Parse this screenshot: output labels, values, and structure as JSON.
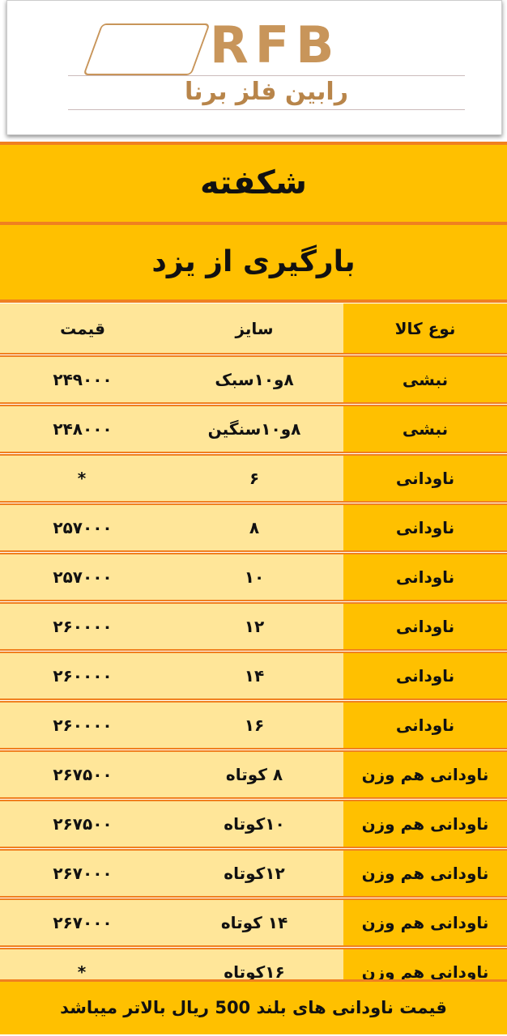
{
  "logo": {
    "mark": "RFB",
    "name": "رابین فلز برنا"
  },
  "title": "شکفته",
  "subtitle": "بارگیری از یزد",
  "headers": {
    "type": "نوع کالا",
    "size": "سایز",
    "price": "قیمت"
  },
  "rows": [
    {
      "type": "نبشی",
      "size": "۸و۱۰سبک",
      "price": "۲۴۹۰۰۰"
    },
    {
      "type": "نبشی",
      "size": "۸و۱۰سنگین",
      "price": "۲۴۸۰۰۰"
    },
    {
      "type": "ناودانی",
      "size": "۶",
      "price": "*"
    },
    {
      "type": "ناودانی",
      "size": "۸",
      "price": "۲۵۷۰۰۰"
    },
    {
      "type": "ناودانی",
      "size": "۱۰",
      "price": "۲۵۷۰۰۰"
    },
    {
      "type": "ناودانی",
      "size": "۱۲",
      "price": "۲۶۰۰۰۰"
    },
    {
      "type": "ناودانی",
      "size": "۱۴",
      "price": "۲۶۰۰۰۰"
    },
    {
      "type": "ناودانی",
      "size": "۱۶",
      "price": "۲۶۰۰۰۰"
    },
    {
      "type": "ناودانی هم وزن",
      "size": "۸ کوتاه",
      "price": "۲۶۷۵۰۰"
    },
    {
      "type": "ناودانی هم وزن",
      "size": "۱۰کوتاه",
      "price": "۲۶۷۵۰۰"
    },
    {
      "type": "ناودانی هم وزن",
      "size": "۱۲کوتاه",
      "price": "۲۶۷۰۰۰"
    },
    {
      "type": "ناودانی هم وزن",
      "size": "۱۴ کوتاه",
      "price": "۲۶۷۰۰۰"
    },
    {
      "type": "ناودانی هم وزن",
      "size": "۱۶کوتاه",
      "price": "*"
    }
  ],
  "footer": "قیمت ناودانی های بلند 500 ریال بالاتر میباشد",
  "colors": {
    "yellow": "#FFC000",
    "light": "#FFE699",
    "line": "#F08020",
    "gold": "#C8955A"
  }
}
